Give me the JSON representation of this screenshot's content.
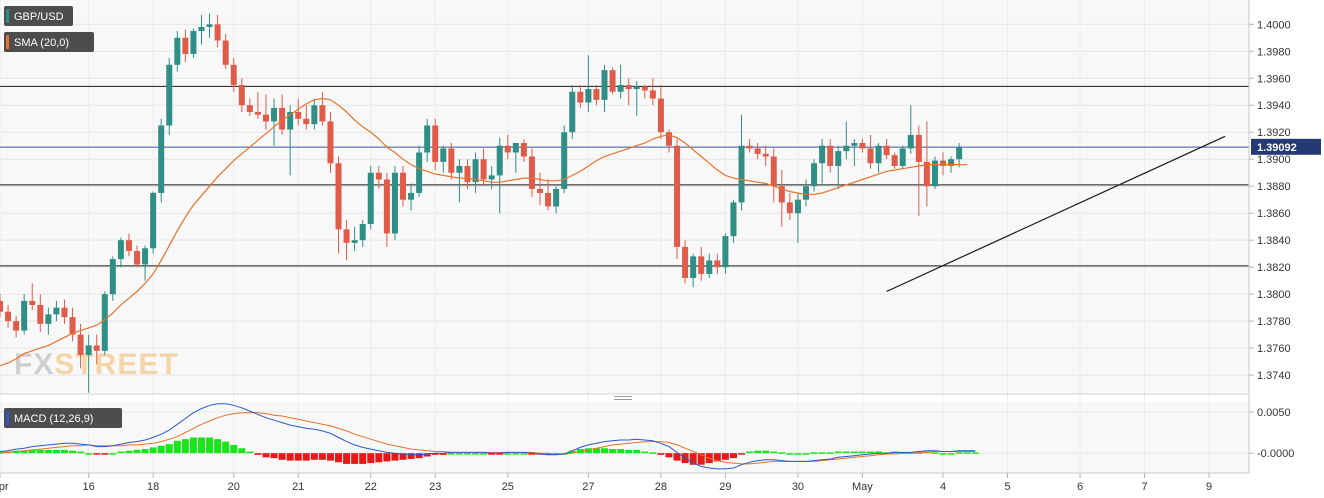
{
  "chart_data": [
    {
      "type": "candlestick",
      "legend": [
        {
          "label": "GBP/USD",
          "color": "#2f8f86"
        },
        {
          "label": "SMA (20,0)",
          "color": "#e8722b"
        }
      ],
      "watermark": {
        "part1": "FX",
        "part2": "STREET"
      },
      "ylim": [
        1.3726,
        1.4018
      ],
      "y_ticks": [
        "1.4000",
        "1.3980",
        "1.3960",
        "1.3940",
        "1.3920",
        "1.3900",
        "1.3880",
        "1.3860",
        "1.3840",
        "1.3820",
        "1.3800",
        "1.3780",
        "1.3760",
        "1.3740"
      ],
      "last_price": "1.39092",
      "last_price_value": 1.39092,
      "x_ticks": [
        {
          "label": "Apr",
          "bar": 0
        },
        {
          "label": "16",
          "bar": 11
        },
        {
          "label": "18",
          "bar": 19
        },
        {
          "label": "20",
          "bar": 29
        },
        {
          "label": "21",
          "bar": 37
        },
        {
          "label": "22",
          "bar": 46
        },
        {
          "label": "23",
          "bar": 54
        },
        {
          "label": "25",
          "bar": 63
        },
        {
          "label": "27",
          "bar": 73
        },
        {
          "label": "28",
          "bar": 82
        },
        {
          "label": "29",
          "bar": 90
        },
        {
          "label": "30",
          "bar": 99
        },
        {
          "label": "May",
          "bar": 107
        },
        {
          "label": "4",
          "bar": 117
        },
        {
          "label": "5",
          "bar": 125
        },
        {
          "label": "6",
          "bar": 134
        },
        {
          "label": "7",
          "bar": 142
        },
        {
          "label": "9",
          "bar": 150
        }
      ],
      "horizontal_levels": [
        1.3954,
        1.3881,
        1.3821
      ],
      "price_line": 1.3909,
      "trendline": [
        {
          "bar": 110,
          "price": 1.3802
        },
        {
          "bar": 152,
          "price": 1.3917
        }
      ],
      "candles": [
        [
          1.3795,
          1.38,
          1.3783,
          1.3787
        ],
        [
          1.3787,
          1.3792,
          1.3775,
          1.378
        ],
        [
          1.378,
          1.3784,
          1.3768,
          1.3773
        ],
        [
          1.3773,
          1.38,
          1.377,
          1.3795
        ],
        [
          1.3795,
          1.3808,
          1.3788,
          1.3792
        ],
        [
          1.3792,
          1.38,
          1.3772,
          1.3778
        ],
        [
          1.3778,
          1.379,
          1.377,
          1.3785
        ],
        [
          1.3785,
          1.3795,
          1.378,
          1.379
        ],
        [
          1.379,
          1.3796,
          1.3778,
          1.3783
        ],
        [
          1.3783,
          1.379,
          1.3765,
          1.377
        ],
        [
          1.377,
          1.3778,
          1.3745,
          1.3755
        ],
        [
          1.3755,
          1.377,
          1.3727,
          1.3762
        ],
        [
          1.3762,
          1.377,
          1.3748,
          1.3758
        ],
        [
          1.3758,
          1.3802,
          1.3755,
          1.38
        ],
        [
          1.38,
          1.3828,
          1.3795,
          1.3826
        ],
        [
          1.3826,
          1.3842,
          1.382,
          1.384
        ],
        [
          1.384,
          1.3845,
          1.3828,
          1.3832
        ],
        [
          1.3832,
          1.3836,
          1.382,
          1.3822
        ],
        [
          1.3822,
          1.3836,
          1.381,
          1.3834
        ],
        [
          1.3834,
          1.3876,
          1.383,
          1.3875
        ],
        [
          1.3875,
          1.393,
          1.3868,
          1.3925
        ],
        [
          1.3925,
          1.3975,
          1.3918,
          1.397
        ],
        [
          1.397,
          1.3995,
          1.3965,
          1.399
        ],
        [
          1.399,
          1.3996,
          1.3972,
          1.3978
        ],
        [
          1.3978,
          1.3997,
          1.3975,
          1.3995
        ],
        [
          1.3995,
          1.4007,
          1.3985,
          1.3998
        ],
        [
          1.3998,
          1.4008,
          1.399,
          1.4
        ],
        [
          1.4,
          1.4007,
          1.3983,
          1.3988
        ],
        [
          1.3988,
          1.3993,
          1.3967,
          1.397
        ],
        [
          1.397,
          1.3975,
          1.395,
          1.3955
        ],
        [
          1.3955,
          1.396,
          1.3935,
          1.394
        ],
        [
          1.394,
          1.3945,
          1.3932,
          1.3935
        ],
        [
          1.3935,
          1.395,
          1.393,
          1.3933
        ],
        [
          1.3933,
          1.3948,
          1.3922,
          1.3928
        ],
        [
          1.3928,
          1.3945,
          1.391,
          1.3938
        ],
        [
          1.3938,
          1.3948,
          1.3918,
          1.3922
        ],
        [
          1.3922,
          1.394,
          1.3888,
          1.3935
        ],
        [
          1.3935,
          1.3945,
          1.3925,
          1.393
        ],
        [
          1.393,
          1.394,
          1.3922,
          1.3926
        ],
        [
          1.3926,
          1.3945,
          1.3922,
          1.394
        ],
        [
          1.394,
          1.395,
          1.3925,
          1.3928
        ],
        [
          1.3928,
          1.3935,
          1.389,
          1.3897
        ],
        [
          1.3897,
          1.3902,
          1.383,
          1.3848
        ],
        [
          1.3848,
          1.3855,
          1.3825,
          1.3838
        ],
        [
          1.3838,
          1.385,
          1.3832,
          1.384
        ],
        [
          1.384,
          1.3855,
          1.3835,
          1.3852
        ],
        [
          1.3852,
          1.3895,
          1.3848,
          1.389
        ],
        [
          1.389,
          1.3895,
          1.3878,
          1.3885
        ],
        [
          1.3885,
          1.389,
          1.3835,
          1.3845
        ],
        [
          1.3845,
          1.3895,
          1.384,
          1.389
        ],
        [
          1.389,
          1.3895,
          1.3865,
          1.387
        ],
        [
          1.387,
          1.3882,
          1.3862,
          1.3875
        ],
        [
          1.3875,
          1.391,
          1.3872,
          1.3905
        ],
        [
          1.3905,
          1.393,
          1.3898,
          1.3925
        ],
        [
          1.3925,
          1.393,
          1.3892,
          1.3898
        ],
        [
          1.3898,
          1.391,
          1.389,
          1.3908
        ],
        [
          1.3908,
          1.3912,
          1.3885,
          1.389
        ],
        [
          1.389,
          1.39,
          1.3868,
          1.3895
        ],
        [
          1.3895,
          1.39,
          1.3878,
          1.3883
        ],
        [
          1.3883,
          1.3905,
          1.3875,
          1.39
        ],
        [
          1.39,
          1.3908,
          1.388,
          1.3885
        ],
        [
          1.3885,
          1.3895,
          1.3878,
          1.3888
        ],
        [
          1.3888,
          1.3916,
          1.386,
          1.391
        ],
        [
          1.391,
          1.3918,
          1.39,
          1.3905
        ],
        [
          1.3905,
          1.3912,
          1.389,
          1.3912
        ],
        [
          1.3912,
          1.3915,
          1.3898,
          1.3902
        ],
        [
          1.3902,
          1.3908,
          1.3872,
          1.3878
        ],
        [
          1.3878,
          1.389,
          1.3866,
          1.3875
        ],
        [
          1.3875,
          1.3885,
          1.3862,
          1.3865
        ],
        [
          1.3865,
          1.388,
          1.386,
          1.3878
        ],
        [
          1.3878,
          1.3925,
          1.3875,
          1.392
        ],
        [
          1.392,
          1.3955,
          1.3915,
          1.395
        ],
        [
          1.395,
          1.3955,
          1.3938,
          1.3942
        ],
        [
          1.3942,
          1.3977,
          1.3935,
          1.3952
        ],
        [
          1.3952,
          1.3955,
          1.394,
          1.3944
        ],
        [
          1.3944,
          1.397,
          1.3935,
          1.3966
        ],
        [
          1.3966,
          1.3968,
          1.3948,
          1.395
        ],
        [
          1.395,
          1.397,
          1.3945,
          1.3955
        ],
        [
          1.3955,
          1.396,
          1.394,
          1.3952
        ],
        [
          1.3952,
          1.3958,
          1.3932,
          1.3954
        ],
        [
          1.3954,
          1.3955,
          1.3945,
          1.3951
        ],
        [
          1.3951,
          1.396,
          1.394,
          1.3945
        ],
        [
          1.3945,
          1.3955,
          1.3915,
          1.392
        ],
        [
          1.392,
          1.3922,
          1.3905,
          1.391
        ],
        [
          1.391,
          1.3915,
          1.3826,
          1.3835
        ],
        [
          1.3835,
          1.384,
          1.3808,
          1.3812
        ],
        [
          1.3812,
          1.383,
          1.3805,
          1.3828
        ],
        [
          1.3828,
          1.3835,
          1.381,
          1.3815
        ],
        [
          1.3815,
          1.383,
          1.3812,
          1.3825
        ],
        [
          1.3825,
          1.383,
          1.3815,
          1.382
        ],
        [
          1.382,
          1.3845,
          1.3815,
          1.3843
        ],
        [
          1.3843,
          1.387,
          1.3838,
          1.3868
        ],
        [
          1.3868,
          1.3933,
          1.3862,
          1.391
        ],
        [
          1.391,
          1.3915,
          1.3905,
          1.3908
        ],
        [
          1.3908,
          1.3912,
          1.39,
          1.3904
        ],
        [
          1.3904,
          1.391,
          1.3895,
          1.3902
        ],
        [
          1.3902,
          1.3908,
          1.3868,
          1.388
        ],
        [
          1.388,
          1.3892,
          1.385,
          1.3868
        ],
        [
          1.3868,
          1.3875,
          1.3855,
          1.386
        ],
        [
          1.386,
          1.3875,
          1.3838,
          1.387
        ],
        [
          1.387,
          1.3885,
          1.3865,
          1.388
        ],
        [
          1.388,
          1.39,
          1.3876,
          1.3897
        ],
        [
          1.3897,
          1.3915,
          1.3882,
          1.391
        ],
        [
          1.391,
          1.3915,
          1.389,
          1.3895
        ],
        [
          1.3895,
          1.391,
          1.3878,
          1.3906
        ],
        [
          1.3906,
          1.3928,
          1.39,
          1.391
        ],
        [
          1.391,
          1.3915,
          1.3895,
          1.3912
        ],
        [
          1.3912,
          1.3915,
          1.3905,
          1.3908
        ],
        [
          1.3908,
          1.3918,
          1.3893,
          1.3897
        ],
        [
          1.3897,
          1.3912,
          1.389,
          1.391
        ],
        [
          1.391,
          1.3915,
          1.39,
          1.3903
        ],
        [
          1.3903,
          1.3905,
          1.3893,
          1.3895
        ],
        [
          1.3895,
          1.391,
          1.3893,
          1.3908
        ],
        [
          1.3908,
          1.394,
          1.3904,
          1.3918
        ],
        [
          1.3918,
          1.3925,
          1.3858,
          1.3898
        ],
        [
          1.3898,
          1.3928,
          1.3865,
          1.388
        ],
        [
          1.388,
          1.3902,
          1.3878,
          1.3899
        ],
        [
          1.3899,
          1.3905,
          1.3888,
          1.3895
        ],
        [
          1.3895,
          1.3902,
          1.389,
          1.39
        ],
        [
          1.39,
          1.3912,
          1.3894,
          1.3909
        ]
      ],
      "sma": [
        1.3747,
        1.3749,
        1.3752,
        1.3756,
        1.3758,
        1.376,
        1.3762,
        1.3765,
        1.3768,
        1.3771,
        1.3773,
        1.3775,
        1.3777,
        1.3781,
        1.3786,
        1.3792,
        1.3797,
        1.3802,
        1.3808,
        1.3815,
        1.3825,
        1.3836,
        1.3847,
        1.3857,
        1.3866,
        1.3873,
        1.388,
        1.3887,
        1.3893,
        1.3899,
        1.3904,
        1.3909,
        1.3914,
        1.3919,
        1.3924,
        1.3929,
        1.3933,
        1.3937,
        1.3941,
        1.3944,
        1.3945,
        1.3944,
        1.394,
        1.3935,
        1.3929,
        1.3924,
        1.392,
        1.3915,
        1.3909,
        1.3905,
        1.39,
        1.3896,
        1.3893,
        1.3891,
        1.3889,
        1.3888,
        1.3887,
        1.3886,
        1.3886,
        1.3885,
        1.3884,
        1.3883,
        1.3883,
        1.3884,
        1.3885,
        1.3886,
        1.3886,
        1.3885,
        1.3884,
        1.3884,
        1.3885,
        1.3888,
        1.3891,
        1.3895,
        1.3899,
        1.3902,
        1.3904,
        1.3906,
        1.3908,
        1.391,
        1.3912,
        1.3915,
        1.3917,
        1.3918,
        1.3916,
        1.3912,
        1.3907,
        1.3902,
        1.3897,
        1.3892,
        1.3888,
        1.3886,
        1.3885,
        1.3884,
        1.3883,
        1.3882,
        1.388,
        1.3878,
        1.3876,
        1.3875,
        1.3874,
        1.3874,
        1.3875,
        1.3877,
        1.3879,
        1.3881,
        1.3883,
        1.3885,
        1.3887,
        1.3889,
        1.3891,
        1.3892,
        1.3893,
        1.3894,
        1.3895,
        1.3896,
        1.3896,
        1.3896,
        1.3896,
        1.3896,
        1.3896
      ]
    },
    {
      "type": "macd",
      "legend": [
        {
          "label": "MACD (12,26,9)",
          "color": "#2c59c8"
        }
      ],
      "ylim": [
        -0.0024,
        0.0062
      ],
      "y_ticks": [
        {
          "label": "0.0050",
          "value": 0.005
        },
        {
          "label": "-0.0000",
          "value": 0.0
        }
      ],
      "macd": [
        0.0002,
        0.0003,
        0.0005,
        0.0006,
        0.0008,
        0.0009,
        0.001,
        0.0011,
        0.0012,
        0.0012,
        0.0011,
        0.001,
        0.0008,
        0.0008,
        0.0009,
        0.0011,
        0.0013,
        0.0014,
        0.0016,
        0.0019,
        0.0023,
        0.0028,
        0.0035,
        0.0042,
        0.0049,
        0.0054,
        0.0058,
        0.006,
        0.006,
        0.0058,
        0.0055,
        0.0051,
        0.0047,
        0.0043,
        0.004,
        0.0037,
        0.0034,
        0.0032,
        0.003,
        0.0029,
        0.0027,
        0.0024,
        0.0019,
        0.0014,
        0.001,
        0.0007,
        0.0005,
        0.0003,
        0.0001,
        0.0,
        -0.0001,
        -0.0002,
        -0.0002,
        -0.0001,
        0.0,
        0.0,
        0.0001,
        0.0001,
        0.0001,
        0.0001,
        0.0001,
        0.0,
        0.0,
        0.0001,
        0.0001,
        0.0001,
        0.0,
        -0.0001,
        -0.0002,
        -0.0002,
        -0.0001,
        0.0003,
        0.0007,
        0.001,
        0.0012,
        0.0014,
        0.0015,
        0.0016,
        0.0016,
        0.0017,
        0.0016,
        0.0015,
        0.0012,
        0.0008,
        0.0001,
        -0.0006,
        -0.0012,
        -0.0016,
        -0.0018,
        -0.0019,
        -0.0019,
        -0.0018,
        -0.0014,
        -0.0011,
        -0.0009,
        -0.0008,
        -0.0008,
        -0.0009,
        -0.001,
        -0.001,
        -0.001,
        -0.0009,
        -0.0008,
        -0.0007,
        -0.0005,
        -0.0004,
        -0.0003,
        -0.0002,
        -0.0001,
        0.0,
        0.0,
        0.0001,
        0.0001,
        0.0001,
        0.0002,
        0.0003,
        0.0003,
        0.0002,
        0.0002,
        0.0003,
        0.0003,
        0.0003
      ],
      "signal": [
        0.0,
        0.0001,
        0.0002,
        0.0003,
        0.0004,
        0.0005,
        0.0006,
        0.0007,
        0.0008,
        0.0009,
        0.0009,
        0.001,
        0.0009,
        0.0009,
        0.0009,
        0.0009,
        0.001,
        0.001,
        0.0011,
        0.0012,
        0.0014,
        0.0017,
        0.002,
        0.0025,
        0.003,
        0.0035,
        0.0039,
        0.0043,
        0.0046,
        0.0048,
        0.0049,
        0.0049,
        0.0049,
        0.0048,
        0.0046,
        0.0045,
        0.0043,
        0.0041,
        0.0039,
        0.0037,
        0.0035,
        0.0033,
        0.003,
        0.0027,
        0.0023,
        0.002,
        0.0017,
        0.0014,
        0.0011,
        0.0009,
        0.0007,
        0.0005,
        0.0004,
        0.0003,
        0.0002,
        0.0002,
        0.0001,
        0.0001,
        0.0001,
        0.0001,
        0.0001,
        0.0001,
        0.0001,
        0.0001,
        0.0001,
        0.0001,
        0.0001,
        0.0,
        0.0,
        -0.0001,
        -0.0001,
        0.0,
        0.0002,
        0.0004,
        0.0006,
        0.0008,
        0.001,
        0.0011,
        0.0012,
        0.0013,
        0.0014,
        0.0014,
        0.0014,
        0.0013,
        0.001,
        0.0006,
        0.0002,
        -0.0002,
        -0.0006,
        -0.0009,
        -0.0011,
        -0.0012,
        -0.0013,
        -0.0013,
        -0.0012,
        -0.0011,
        -0.001,
        -0.001,
        -0.001,
        -0.001,
        -0.001,
        -0.001,
        -0.0009,
        -0.0008,
        -0.0007,
        -0.0006,
        -0.0005,
        -0.0004,
        -0.0003,
        -0.0002,
        -0.0001,
        -0.0001,
        0.0,
        0.0,
        0.0001,
        0.0001,
        0.0002,
        0.0002,
        0.0002,
        0.0002,
        0.0002,
        0.0002
      ]
    }
  ]
}
